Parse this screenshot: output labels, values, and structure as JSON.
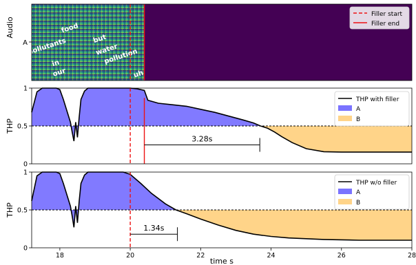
{
  "figure": {
    "xlabel": "time s"
  },
  "colors": {
    "A": "#7a73ff",
    "B": "#ffd489",
    "curve": "#000000",
    "filler": "#ee1111",
    "spec_bg": "#440154"
  },
  "chart_data": [
    {
      "type": "heatmap",
      "ylabel": "Audio",
      "ytick": "A",
      "xlim": [
        17.2,
        28
      ],
      "speech_end": 20.4,
      "words": [
        {
          "text": "pollutants",
          "x": 17.65,
          "y": 0.58,
          "angle": -18
        },
        {
          "text": "food",
          "x": 18.3,
          "y": 0.34,
          "angle": -18
        },
        {
          "text": "in",
          "x": 17.9,
          "y": 0.8,
          "angle": -18
        },
        {
          "text": "our",
          "x": 18.0,
          "y": 0.92,
          "angle": -18
        },
        {
          "text": "but",
          "x": 19.15,
          "y": 0.48,
          "angle": -18
        },
        {
          "text": "water",
          "x": 19.35,
          "y": 0.62,
          "angle": -18
        },
        {
          "text": "pollution",
          "x": 19.75,
          "y": 0.71,
          "angle": -18
        },
        {
          "text": "uh",
          "x": 20.25,
          "y": 0.94,
          "angle": -18
        }
      ],
      "legend": [
        "Filler start",
        "Filler end"
      ],
      "legend_position": "top-right"
    },
    {
      "type": "area",
      "ylabel": "THP",
      "ylim": [
        0,
        1
      ],
      "yticks": [
        "0",
        "0.5",
        "1"
      ],
      "threshold": 0.5,
      "filler_start": 20.0,
      "filler_end": 20.4,
      "annotation": {
        "label": "3.28s",
        "x_start": 20.4,
        "x_end": 23.68
      },
      "legend": [
        "THP with filler",
        "A",
        "B"
      ],
      "legend_position": "top-right",
      "x": [
        17.2,
        17.35,
        17.5,
        17.7,
        17.9,
        18.0,
        18.1,
        18.2,
        18.3,
        18.35,
        18.4,
        18.45,
        18.5,
        18.55,
        18.6,
        18.7,
        18.8,
        18.9,
        19.0,
        19.5,
        20.0,
        20.2,
        20.4,
        20.5,
        20.8,
        21.2,
        21.6,
        22.0,
        22.4,
        22.8,
        23.2,
        23.5,
        23.7,
        23.9,
        24.1,
        24.3,
        24.6,
        25.0,
        25.5,
        26.0,
        27.0,
        28.0
      ],
      "y": [
        0.68,
        0.95,
        1.0,
        1.0,
        1.0,
        0.98,
        0.85,
        0.7,
        0.55,
        0.42,
        0.3,
        0.55,
        0.35,
        0.62,
        0.85,
        0.96,
        1.0,
        1.0,
        1.0,
        1.0,
        1.0,
        0.99,
        0.97,
        0.84,
        0.8,
        0.78,
        0.76,
        0.72,
        0.68,
        0.63,
        0.58,
        0.54,
        0.5,
        0.47,
        0.42,
        0.36,
        0.28,
        0.2,
        0.16,
        0.155,
        0.155,
        0.155
      ]
    },
    {
      "type": "area",
      "ylabel": "THP",
      "ylim": [
        0,
        1
      ],
      "yticks": [
        "0",
        "0.5",
        "1"
      ],
      "xticks": [
        "18",
        "20",
        "22",
        "24",
        "26",
        "28"
      ],
      "threshold": 0.5,
      "filler_start": 20.0,
      "annotation": {
        "label": "1.34s",
        "x_start": 20.0,
        "x_end": 21.34
      },
      "legend": [
        "THP w/o filler",
        "A",
        "B"
      ],
      "legend_position": "top-right",
      "x": [
        17.2,
        17.35,
        17.5,
        17.7,
        17.9,
        18.0,
        18.1,
        18.2,
        18.3,
        18.35,
        18.4,
        18.45,
        18.5,
        18.55,
        18.6,
        18.7,
        18.8,
        18.9,
        19.0,
        19.5,
        19.8,
        20.0,
        20.3,
        20.6,
        21.0,
        21.3,
        21.6,
        22.0,
        22.5,
        23.0,
        23.5,
        24.0,
        24.5,
        25.0,
        25.5,
        26.0,
        26.5,
        27.0,
        28.0
      ],
      "y": [
        0.62,
        0.95,
        1.0,
        1.0,
        1.0,
        0.98,
        0.85,
        0.7,
        0.55,
        0.42,
        0.27,
        0.55,
        0.33,
        0.62,
        0.85,
        0.96,
        1.0,
        1.0,
        1.0,
        1.0,
        1.0,
        0.97,
        0.85,
        0.72,
        0.58,
        0.5,
        0.45,
        0.38,
        0.3,
        0.23,
        0.18,
        0.15,
        0.13,
        0.12,
        0.11,
        0.105,
        0.1,
        0.1,
        0.1
      ]
    }
  ]
}
